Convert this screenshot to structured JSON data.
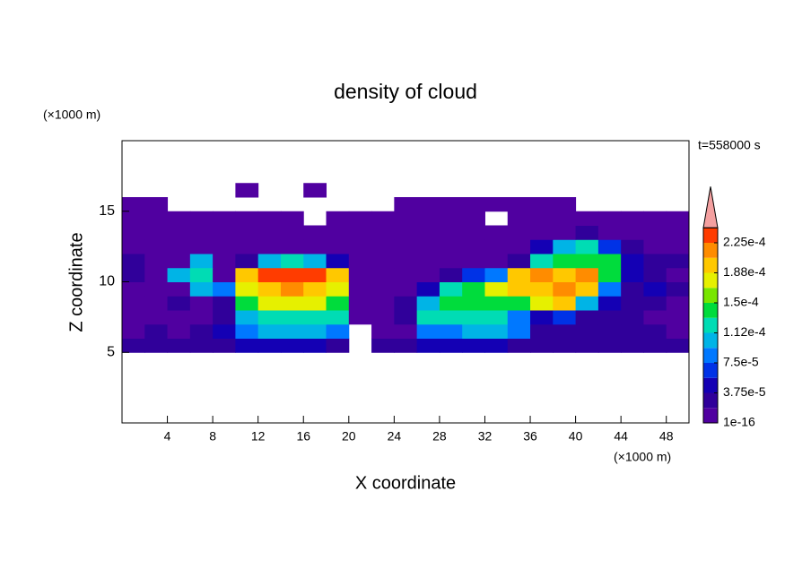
{
  "chart_data": {
    "type": "contour",
    "title": "density of cloud",
    "xlabel": "X coordinate",
    "ylabel": "Z coordinate",
    "x_unit": "(×1000 m)",
    "y_unit": "(×1000 m)",
    "time_label": "t=558000 s",
    "xlim": [
      0,
      50
    ],
    "ylim": [
      0,
      20
    ],
    "xticks": [
      4,
      8,
      12,
      16,
      20,
      24,
      28,
      32,
      36,
      40,
      44,
      48
    ],
    "yticks": [
      5,
      10,
      15
    ],
    "x": [
      1,
      3,
      5,
      7,
      9,
      11,
      13,
      15,
      17,
      19,
      21,
      23,
      25,
      27,
      29,
      31,
      33,
      35,
      37,
      39,
      41,
      43,
      45,
      47,
      49
    ],
    "z": [
      5.5,
      6.5,
      7.5,
      8.5,
      9.5,
      10.5,
      11.5,
      12.5,
      13.5,
      14.5,
      15.5,
      16.5
    ],
    "values": [
      [
        2.5e-05,
        2.5e-05,
        2.5e-05,
        2.5e-05,
        2.5e-05,
        4.5e-05,
        4.5e-05,
        4.5e-05,
        4.5e-05,
        2.5e-05,
        null,
        2.5e-05,
        2.5e-05,
        4.5e-05,
        4.5e-05,
        4.5e-05,
        4.5e-05,
        2.5e-05,
        2.5e-05,
        2.5e-05,
        2.5e-05,
        2.5e-05,
        2.5e-05,
        2.5e-05,
        2.5e-05
      ],
      [
        1e-05,
        2.5e-05,
        1e-05,
        2.5e-05,
        4.5e-05,
        8e-05,
        0.0001,
        0.0001,
        0.0001,
        8e-05,
        null,
        1e-05,
        1e-05,
        8e-05,
        8e-05,
        0.0001,
        0.0001,
        8e-05,
        2.5e-05,
        2.5e-05,
        2.5e-05,
        2.5e-05,
        2.5e-05,
        2.5e-05,
        1e-05
      ],
      [
        1e-05,
        1e-05,
        1e-05,
        1e-05,
        2.5e-05,
        0.0001,
        0.00012,
        0.00012,
        0.00012,
        0.00012,
        1e-05,
        1e-05,
        2.5e-05,
        0.00012,
        0.00012,
        0.00012,
        0.00012,
        8e-05,
        4.5e-05,
        6e-05,
        2.5e-05,
        2.5e-05,
        2.5e-05,
        1e-05,
        1e-05
      ],
      [
        1e-05,
        1e-05,
        2.5e-05,
        1e-05,
        2.5e-05,
        0.000145,
        0.00017,
        0.00017,
        0.00017,
        0.000145,
        1e-05,
        1e-05,
        2.5e-05,
        0.0001,
        0.000145,
        0.000145,
        0.000145,
        0.000145,
        0.00017,
        0.00019,
        0.0001,
        4.5e-05,
        2.5e-05,
        2.5e-05,
        1e-05
      ],
      [
        1e-05,
        1e-05,
        1e-05,
        0.0001,
        8e-05,
        0.00017,
        0.00019,
        0.00021,
        0.00019,
        0.00017,
        1e-05,
        1e-05,
        1e-05,
        4.5e-05,
        0.00012,
        0.000145,
        0.00017,
        0.00019,
        0.00019,
        0.00021,
        0.00019,
        8e-05,
        2.5e-05,
        4.5e-05,
        2.5e-05
      ],
      [
        2.5e-05,
        1e-05,
        0.0001,
        0.00012,
        1e-05,
        0.00019,
        0.00023,
        0.00023,
        0.00023,
        0.00019,
        1e-05,
        1e-05,
        1e-05,
        1e-05,
        2.5e-05,
        6e-05,
        8e-05,
        0.00019,
        0.00021,
        0.00019,
        0.00021,
        0.000145,
        4.5e-05,
        2.5e-05,
        1e-05
      ],
      [
        2.5e-05,
        1e-05,
        1e-05,
        0.0001,
        1e-05,
        2.5e-05,
        0.0001,
        0.00012,
        0.0001,
        4.5e-05,
        1e-05,
        1e-05,
        1e-05,
        1e-05,
        1e-05,
        1e-05,
        1e-05,
        2.5e-05,
        0.00012,
        0.000145,
        0.000145,
        0.000145,
        4.5e-05,
        2.5e-05,
        2.5e-05
      ],
      [
        1e-05,
        1e-05,
        1e-05,
        1e-05,
        1e-05,
        1e-05,
        1e-05,
        1e-05,
        1e-05,
        1e-05,
        1e-05,
        1e-05,
        1e-05,
        1e-05,
        1e-05,
        1e-05,
        1e-05,
        1e-05,
        4.5e-05,
        0.0001,
        0.00012,
        6e-05,
        2.5e-05,
        1e-05,
        1e-05
      ],
      [
        1e-05,
        1e-05,
        1e-05,
        1e-05,
        1e-05,
        1e-05,
        1e-05,
        1e-05,
        1e-05,
        1e-05,
        1e-05,
        1e-05,
        1e-05,
        1e-05,
        1e-05,
        1e-05,
        1e-05,
        1e-05,
        1e-05,
        1e-05,
        2.5e-05,
        1e-05,
        1e-05,
        1e-05,
        1e-05
      ],
      [
        1e-05,
        1e-05,
        1e-05,
        1e-05,
        1e-05,
        1e-05,
        1e-05,
        1e-05,
        null,
        1e-05,
        1e-05,
        1e-05,
        1e-05,
        1e-05,
        1e-05,
        1e-05,
        null,
        1e-05,
        1e-05,
        1e-05,
        1e-05,
        1e-05,
        1e-05,
        1e-05,
        1e-05
      ],
      [
        1e-05,
        1e-05,
        null,
        null,
        null,
        null,
        null,
        null,
        null,
        null,
        null,
        null,
        1e-05,
        1e-05,
        1e-05,
        1e-05,
        1e-05,
        1e-05,
        1e-05,
        1e-05,
        null,
        null,
        null,
        null,
        null
      ],
      [
        null,
        null,
        null,
        null,
        null,
        1e-05,
        null,
        null,
        1e-05,
        null,
        null,
        null,
        null,
        null,
        null,
        null,
        null,
        null,
        null,
        null,
        null,
        null,
        null,
        null,
        null
      ]
    ],
    "colorbar": {
      "levels": [
        1e-16,
        1.875e-05,
        3.75e-05,
        5.625e-05,
        7.5e-05,
        9.375e-05,
        0.0001125,
        0.00013125,
        0.00015,
        0.00016875,
        0.0001875,
        0.00020625,
        0.000225,
        0.00024375
      ],
      "colors": [
        "#5000a0",
        "#30009a",
        "#1400b4",
        "#0032e6",
        "#0078ff",
        "#00b4e6",
        "#00dcb4",
        "#00dc3c",
        "#78e600",
        "#e6f000",
        "#ffc800",
        "#ff8c00",
        "#ff3c00"
      ],
      "extend_color": "#f4a0a0",
      "ticks": [
        {
          "value": 1e-16,
          "label": "1e-16"
        },
        {
          "value": 3.75e-05,
          "label": "3.75e-5"
        },
        {
          "value": 7.5e-05,
          "label": "7.5e-5"
        },
        {
          "value": 0.0001125,
          "label": "1.12e-4"
        },
        {
          "value": 0.00015,
          "label": "1.5e-4"
        },
        {
          "value": 0.0001875,
          "label": "1.88e-4"
        },
        {
          "value": 0.000225,
          "label": "2.25e-4"
        }
      ]
    }
  }
}
